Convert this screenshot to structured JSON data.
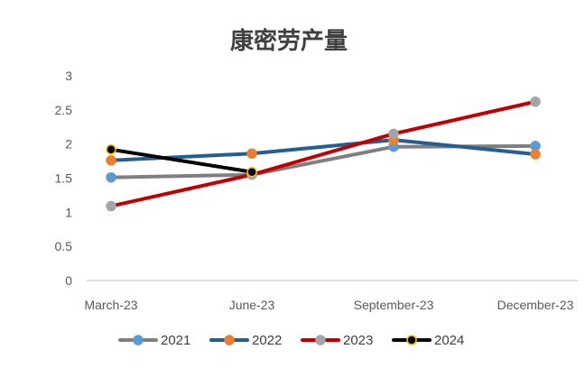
{
  "chart_data": {
    "type": "line",
    "title": "康密劳产量",
    "xlabel": "",
    "ylabel": "",
    "categories": [
      "March-23",
      "June-23",
      "September-23",
      "December-23"
    ],
    "ylim": [
      0,
      3
    ],
    "yticks": [
      "0",
      "0.5",
      "1",
      "1.5",
      "2",
      "2.5",
      "3"
    ],
    "grid": false,
    "legend_position": "bottom",
    "series": [
      {
        "name": "2021",
        "values": [
          1.51,
          1.55,
          1.96,
          1.97
        ],
        "line_color": "#7f7f7f",
        "marker_color": "#5b9bd5",
        "marker_edge": "#5b9bd5"
      },
      {
        "name": "2022",
        "values": [
          1.76,
          1.86,
          2.06,
          1.85
        ],
        "line_color": "#255e91",
        "marker_color": "#ed7d31",
        "marker_edge": "#ed7d31"
      },
      {
        "name": "2023",
        "values": [
          1.09,
          1.55,
          2.15,
          2.62
        ],
        "line_color": "#c00000",
        "marker_color": "#a5a5a5",
        "marker_edge": "#a5a5a5"
      },
      {
        "name": "2024",
        "values": [
          1.92,
          1.59,
          null,
          null
        ],
        "line_color": "#000000",
        "marker_color": "#000000",
        "marker_edge": "#ffc000"
      }
    ]
  }
}
